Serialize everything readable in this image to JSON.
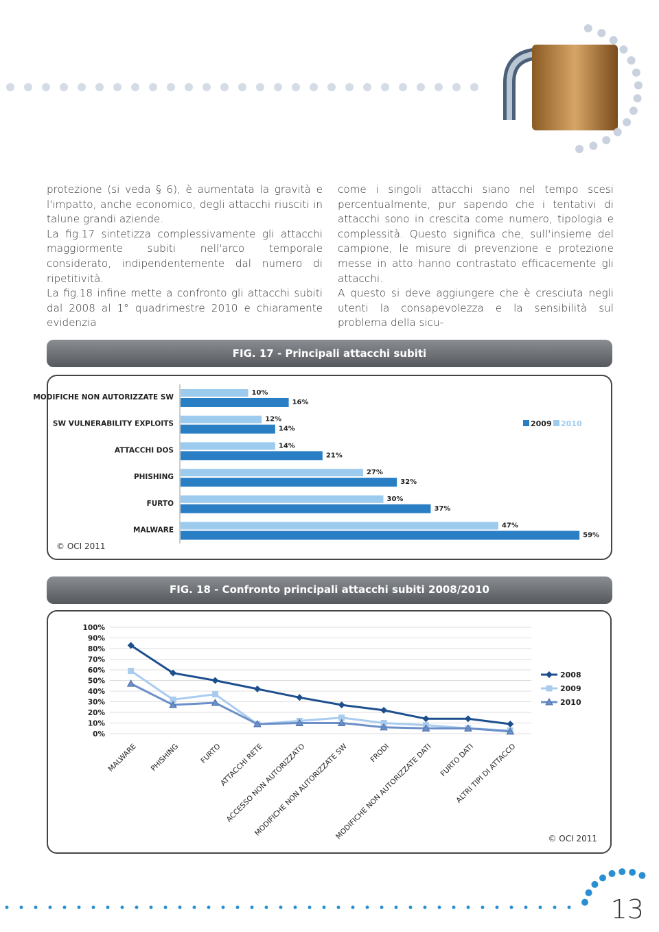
{
  "text": {
    "left": [
      "protezione (si veda § 6), è aumentata la gravità e l'impatto, anche economico, degli attacchi riusciti in talune grandi aziende.",
      "La fig.17 sintetizza complessivamente gli attacchi maggiormente subiti nell'arco temporale considerato, indipendentemente dal numero di ripetitività.",
      "La fig.18 infine mette a confronto gli attacchi subiti dal 2008 al 1° quadrimestre 2010 e chiaramente evidenzia"
    ],
    "right": [
      "come i singoli attacchi siano nel tempo scesi percentualmente, pur sapendo che i tentativi di attacchi sono in crescita come numero, tipologia e complessità. Questo significa che, sull'insieme del campione, le misure di prevenzione e protezione messe in atto hanno contrastato efficacemente gli attacchi.",
      "A questo si deve aggiungere che è cresciuta negli utenti la consapevolezza e la sensibilità sul problema della sicu-"
    ]
  },
  "chart_data": [
    {
      "type": "bar",
      "orientation": "horizontal",
      "title": "FIG. 17 - Principali attacchi subiti",
      "categories": [
        "MODIFICHE NON AUTORIZZATE SW",
        "SW VULNERABILITY EXPLOITS",
        "ATTACCHI DOS",
        "PHISHING",
        "FURTO",
        "MALWARE"
      ],
      "series": [
        {
          "name": "2009",
          "color": "#2a7fc4",
          "values": [
            16,
            14,
            21,
            32,
            37,
            59
          ],
          "value_labels": [
            "16%",
            "14%",
            "21%",
            "32%",
            "37%",
            "59%"
          ]
        },
        {
          "name": "2010",
          "color": "#9dcbee",
          "values": [
            10,
            12,
            14,
            27,
            30,
            47
          ],
          "value_labels": [
            "10%",
            "12%",
            "14%",
            "27%",
            "30%",
            "47%"
          ]
        }
      ],
      "legend": "right",
      "source": "© OCI 2011"
    },
    {
      "type": "line",
      "title": "FIG. 18 - Confronto principali attacchi subiti 2008/2010",
      "categories": [
        "MALWARE",
        "PHISHING",
        "FURTO",
        "ATTACCHI RETE",
        "ACCESSO NON AUTORIZZATO",
        "MODIFICHE NON AUTORIZZATE SW",
        "FRODI",
        "MODIFICHE NON AUTORIZZATE DATI",
        "FURTO DATI",
        "ALTRI TIPI DI ATTACCO"
      ],
      "series": [
        {
          "name": "2008",
          "color": "#1d4f8e",
          "marker": "diamond",
          "values": [
            83,
            57,
            50,
            42,
            34,
            27,
            22,
            14,
            14,
            9
          ]
        },
        {
          "name": "2009",
          "color": "#a9ccee",
          "marker": "square",
          "values": [
            59,
            32,
            37,
            9,
            12,
            15,
            10,
            8,
            5,
            3
          ]
        },
        {
          "name": "2010",
          "color": "#6b8fc9",
          "marker": "triangle",
          "values": [
            47,
            27,
            29,
            9,
            10,
            10,
            6,
            5,
            5,
            2
          ]
        }
      ],
      "ylim": [
        0,
        100
      ],
      "yticks": [
        {
          "value": 0,
          "label": "0%"
        },
        {
          "value": 10,
          "label": "10%"
        },
        {
          "value": 20,
          "label": "20%"
        },
        {
          "value": 30,
          "label": "30%"
        },
        {
          "value": 40,
          "label": "40%"
        },
        {
          "value": 50,
          "label": "50%"
        },
        {
          "value": 60,
          "label": "60%"
        },
        {
          "value": 70,
          "label": "70%"
        },
        {
          "value": 80,
          "label": "80%"
        },
        {
          "value": 90,
          "label": "90%"
        },
        {
          "value": 100,
          "label": "100%"
        }
      ],
      "grid": true,
      "legend": "right",
      "source": "© OCI 2011"
    }
  ],
  "page_number": "13"
}
